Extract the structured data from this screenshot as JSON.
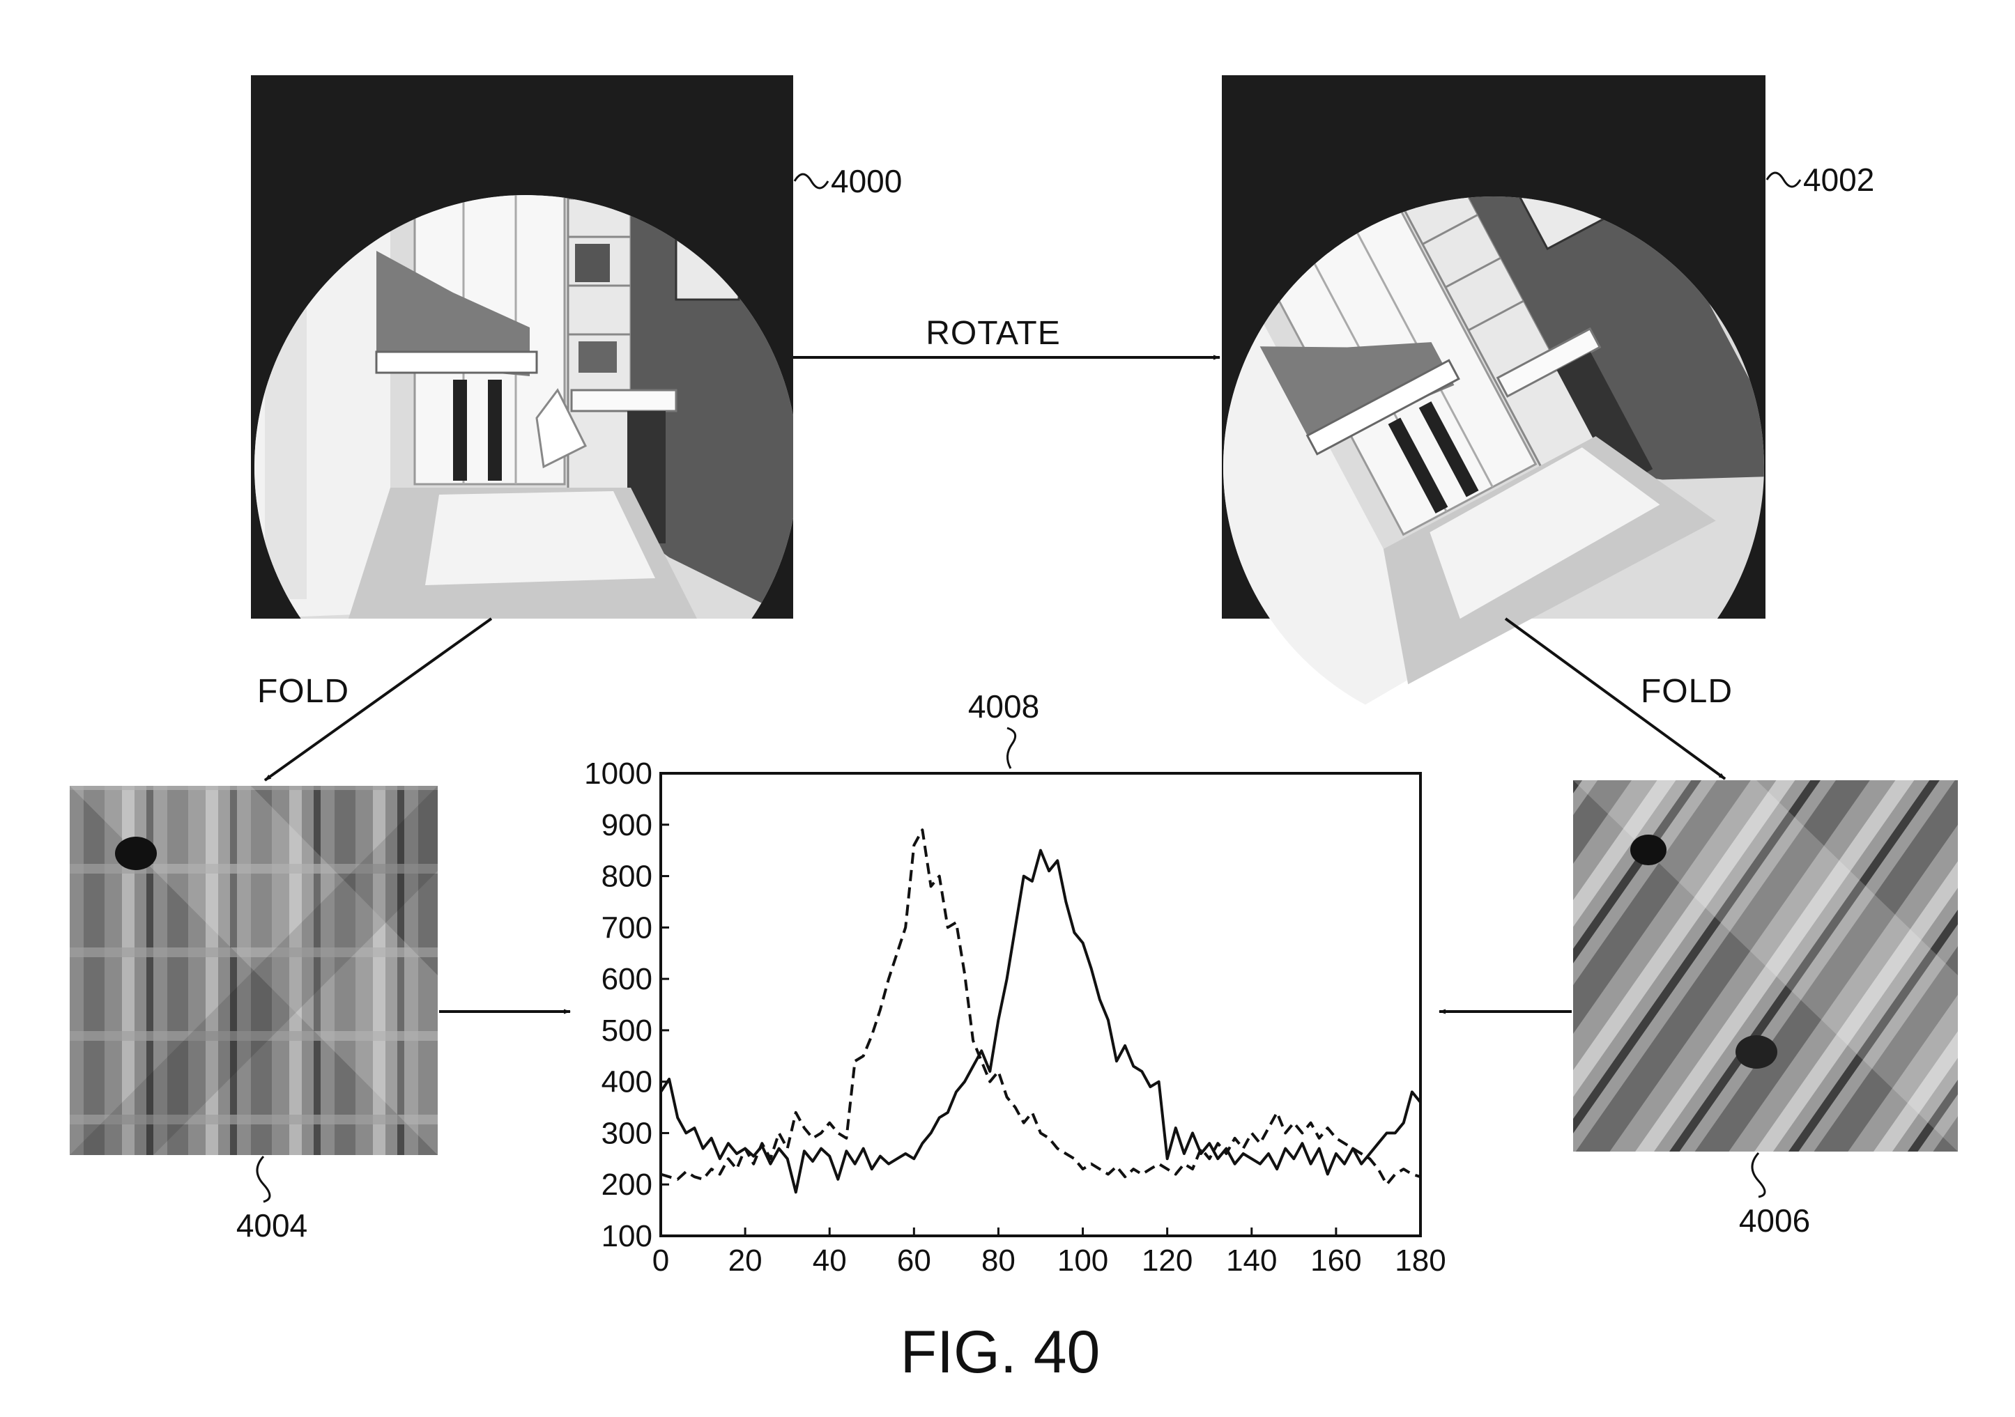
{
  "figure": {
    "caption": "FIG. 40",
    "operations": {
      "rotate": "ROTATE",
      "fold_left": "FOLD",
      "fold_right": "FOLD"
    },
    "reference_numerals": {
      "original_image": "4000",
      "rotated_image": "4002",
      "folded_original": "4004",
      "folded_rotated": "4006",
      "graph": "4008"
    },
    "colors": {
      "ink": "#111111",
      "photo_background": "#1c1c1c",
      "paper": "#ffffff"
    }
  },
  "chart_data": {
    "type": "line",
    "title": "",
    "xlabel": "",
    "ylabel": "",
    "xlim": [
      0,
      180
    ],
    "ylim": [
      100,
      1000
    ],
    "x_ticks": [
      "0",
      "20",
      "40",
      "60",
      "80",
      "100",
      "120",
      "140",
      "160",
      "180"
    ],
    "y_ticks": [
      "100",
      "200",
      "300",
      "400",
      "500",
      "600",
      "700",
      "800",
      "900",
      "1000"
    ],
    "grid": false,
    "legend": "none",
    "series": [
      {
        "style": "solid",
        "points": [
          [
            0,
            380
          ],
          [
            2,
            405
          ],
          [
            4,
            330
          ],
          [
            6,
            300
          ],
          [
            8,
            310
          ],
          [
            10,
            270
          ],
          [
            12,
            290
          ],
          [
            14,
            250
          ],
          [
            16,
            280
          ],
          [
            18,
            260
          ],
          [
            20,
            270
          ],
          [
            22,
            255
          ],
          [
            24,
            275
          ],
          [
            26,
            240
          ],
          [
            28,
            270
          ],
          [
            30,
            250
          ],
          [
            32,
            185
          ],
          [
            34,
            265
          ],
          [
            36,
            245
          ],
          [
            38,
            270
          ],
          [
            40,
            255
          ],
          [
            42,
            210
          ],
          [
            44,
            265
          ],
          [
            46,
            240
          ],
          [
            48,
            270
          ],
          [
            50,
            230
          ],
          [
            52,
            255
          ],
          [
            54,
            240
          ],
          [
            56,
            250
          ],
          [
            58,
            260
          ],
          [
            60,
            250
          ],
          [
            62,
            280
          ],
          [
            64,
            300
          ],
          [
            66,
            330
          ],
          [
            68,
            340
          ],
          [
            70,
            380
          ],
          [
            72,
            400
          ],
          [
            74,
            430
          ],
          [
            76,
            460
          ],
          [
            78,
            420
          ],
          [
            80,
            520
          ],
          [
            82,
            600
          ],
          [
            84,
            700
          ],
          [
            86,
            800
          ],
          [
            88,
            790
          ],
          [
            90,
            850
          ],
          [
            92,
            810
          ],
          [
            94,
            830
          ],
          [
            96,
            750
          ],
          [
            98,
            690
          ],
          [
            100,
            670
          ],
          [
            102,
            620
          ],
          [
            104,
            560
          ],
          [
            106,
            520
          ],
          [
            108,
            440
          ],
          [
            110,
            470
          ],
          [
            112,
            430
          ],
          [
            114,
            420
          ],
          [
            116,
            390
          ],
          [
            118,
            400
          ],
          [
            120,
            250
          ],
          [
            122,
            310
          ],
          [
            124,
            260
          ],
          [
            126,
            300
          ],
          [
            128,
            260
          ],
          [
            130,
            280
          ],
          [
            132,
            250
          ],
          [
            134,
            270
          ],
          [
            136,
            240
          ],
          [
            138,
            260
          ],
          [
            140,
            250
          ],
          [
            142,
            240
          ],
          [
            144,
            260
          ],
          [
            146,
            230
          ],
          [
            148,
            270
          ],
          [
            150,
            250
          ],
          [
            152,
            280
          ],
          [
            154,
            240
          ],
          [
            156,
            270
          ],
          [
            158,
            220
          ],
          [
            160,
            260
          ],
          [
            162,
            240
          ],
          [
            164,
            270
          ],
          [
            166,
            240
          ],
          [
            168,
            260
          ],
          [
            170,
            280
          ],
          [
            172,
            300
          ],
          [
            174,
            300
          ],
          [
            176,
            320
          ],
          [
            178,
            380
          ],
          [
            180,
            360
          ]
        ]
      },
      {
        "style": "dashed",
        "points": [
          [
            0,
            220
          ],
          [
            2,
            215
          ],
          [
            4,
            210
          ],
          [
            6,
            225
          ],
          [
            8,
            215
          ],
          [
            10,
            210
          ],
          [
            12,
            230
          ],
          [
            14,
            220
          ],
          [
            16,
            250
          ],
          [
            18,
            230
          ],
          [
            20,
            270
          ],
          [
            22,
            240
          ],
          [
            24,
            280
          ],
          [
            26,
            250
          ],
          [
            28,
            300
          ],
          [
            30,
            270
          ],
          [
            32,
            340
          ],
          [
            34,
            310
          ],
          [
            36,
            290
          ],
          [
            38,
            300
          ],
          [
            40,
            320
          ],
          [
            42,
            300
          ],
          [
            44,
            290
          ],
          [
            46,
            440
          ],
          [
            48,
            450
          ],
          [
            50,
            490
          ],
          [
            52,
            540
          ],
          [
            54,
            600
          ],
          [
            56,
            650
          ],
          [
            58,
            700
          ],
          [
            60,
            860
          ],
          [
            62,
            890
          ],
          [
            64,
            780
          ],
          [
            66,
            800
          ],
          [
            68,
            700
          ],
          [
            70,
            710
          ],
          [
            72,
            610
          ],
          [
            74,
            480
          ],
          [
            76,
            440
          ],
          [
            78,
            400
          ],
          [
            80,
            420
          ],
          [
            82,
            370
          ],
          [
            84,
            350
          ],
          [
            86,
            320
          ],
          [
            88,
            340
          ],
          [
            90,
            300
          ],
          [
            92,
            290
          ],
          [
            94,
            270
          ],
          [
            96,
            260
          ],
          [
            98,
            250
          ],
          [
            100,
            230
          ],
          [
            102,
            240
          ],
          [
            104,
            230
          ],
          [
            106,
            220
          ],
          [
            108,
            235
          ],
          [
            110,
            215
          ],
          [
            112,
            230
          ],
          [
            114,
            220
          ],
          [
            116,
            230
          ],
          [
            118,
            240
          ],
          [
            120,
            230
          ],
          [
            122,
            220
          ],
          [
            124,
            240
          ],
          [
            126,
            230
          ],
          [
            128,
            270
          ],
          [
            130,
            250
          ],
          [
            132,
            280
          ],
          [
            134,
            260
          ],
          [
            136,
            290
          ],
          [
            138,
            270
          ],
          [
            140,
            300
          ],
          [
            142,
            280
          ],
          [
            144,
            310
          ],
          [
            146,
            340
          ],
          [
            148,
            300
          ],
          [
            150,
            320
          ],
          [
            152,
            300
          ],
          [
            154,
            320
          ],
          [
            156,
            290
          ],
          [
            158,
            310
          ],
          [
            160,
            290
          ],
          [
            162,
            280
          ],
          [
            164,
            270
          ],
          [
            166,
            260
          ],
          [
            168,
            250
          ],
          [
            170,
            230
          ],
          [
            172,
            200
          ],
          [
            174,
            220
          ],
          [
            176,
            230
          ],
          [
            178,
            220
          ],
          [
            180,
            215
          ]
        ]
      }
    ]
  }
}
